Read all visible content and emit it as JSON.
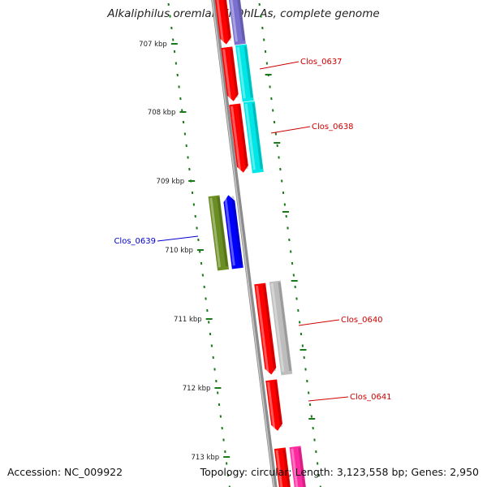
{
  "title": "Alkaliphilus oremlandii OhILAs, complete genome",
  "footer": {
    "accession": "Accession: NC_009922",
    "summary": "Topology: circular; Length: 3,123,558 bp; Genes: 2,950"
  },
  "ticks": [
    "707 kbp",
    "708 kbp",
    "709 kbp",
    "710 kbp",
    "711 kbp",
    "712 kbp",
    "713 kbp"
  ],
  "genes": [
    {
      "label": "Clos_0637",
      "color": "#cc0000"
    },
    {
      "label": "Clos_0638",
      "color": "#cc0000"
    },
    {
      "label": "Clos_0639",
      "color": "#0000cc"
    },
    {
      "label": "Clos_0640",
      "color": "#cc0000"
    },
    {
      "label": "Clos_0641",
      "color": "#cc0000"
    }
  ],
  "colors": {
    "backbone": "#8c8c8c",
    "tick": "#1a7a1a",
    "cds": "#ff0000",
    "cyan": "#00e6e6",
    "purple": "#7a70d0",
    "olive": "#6b8e23",
    "blue": "#0000ff",
    "gray": "#bdbdbd",
    "pink": "#ff2aa0"
  }
}
